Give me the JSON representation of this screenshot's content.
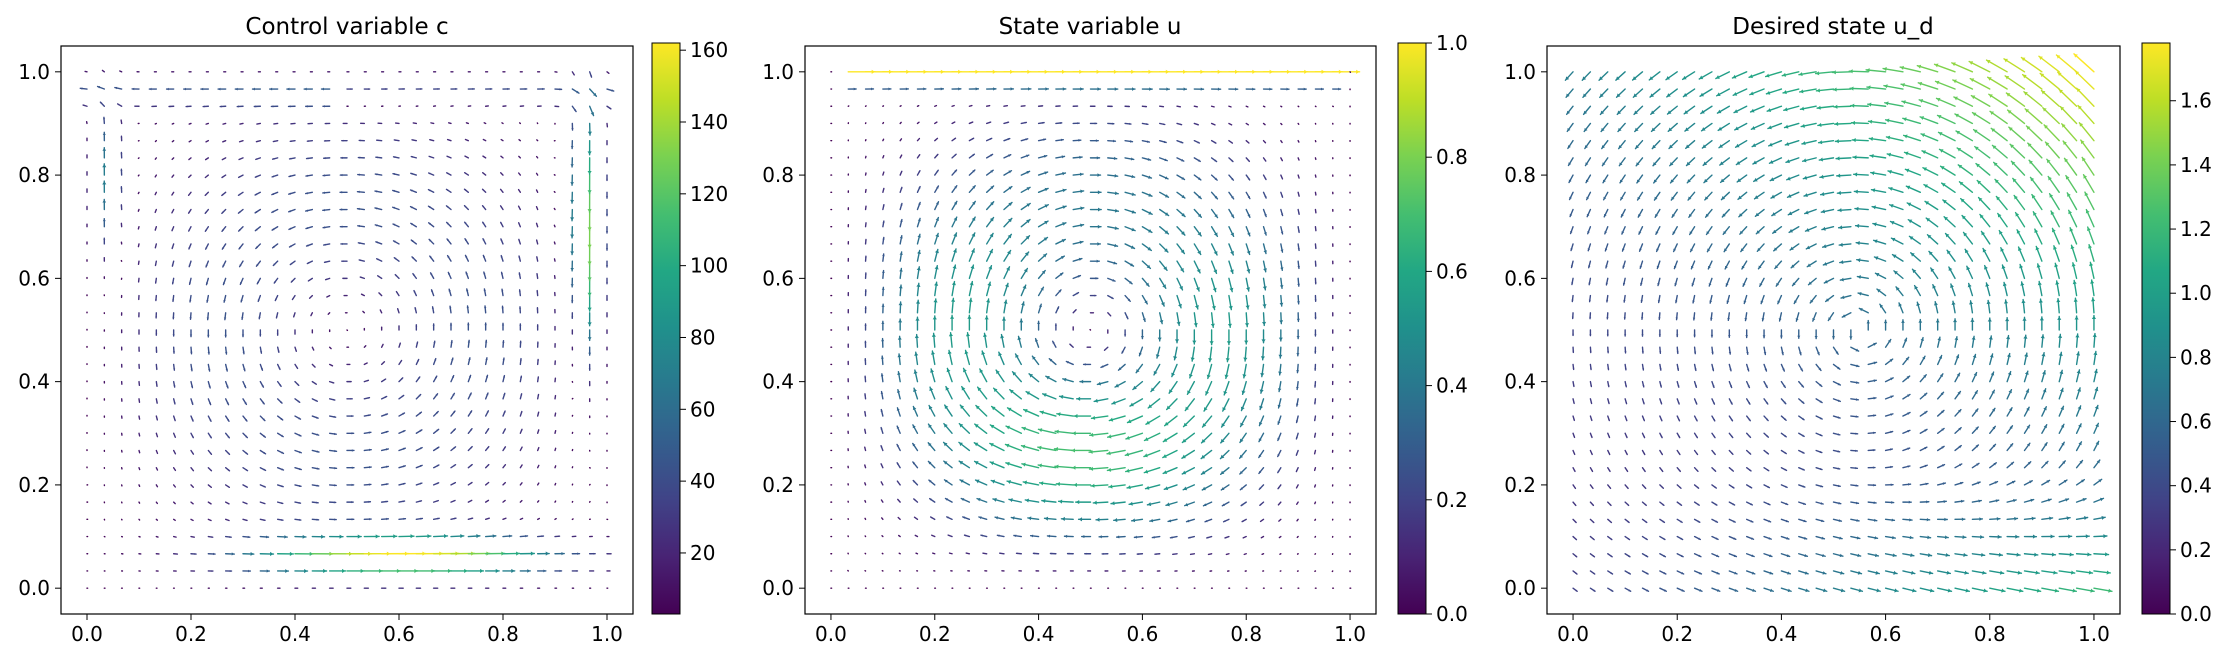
{
  "chart_data": [
    {
      "type": "quiver",
      "title": "Control variable c",
      "field": "control",
      "xlim": [
        -0.05,
        1.05
      ],
      "ylim": [
        -0.05,
        1.05
      ],
      "xticks": [
        "0.0",
        "0.2",
        "0.4",
        "0.6",
        "0.8",
        "1.0"
      ],
      "yticks": [
        "0.0",
        "0.2",
        "0.4",
        "0.6",
        "0.8",
        "1.0"
      ],
      "grid_points": 31,
      "colorbar": {
        "min": 3,
        "max": 162,
        "ticks": [
          "20",
          "40",
          "60",
          "80",
          "100",
          "120",
          "140",
          "160"
        ],
        "colormap": "viridis"
      },
      "description_of_flow": "Two counter-rotating boundary-concentrated vortices; strongest near bottom edge (x≈0.6, y≈0.05) and right edge (x≈0.97, y≈0.7)."
    },
    {
      "type": "quiver",
      "title": "State variable u",
      "field": "state",
      "xlim": [
        -0.05,
        1.05
      ],
      "ylim": [
        -0.05,
        1.05
      ],
      "xticks": [
        "0.0",
        "0.2",
        "0.4",
        "0.6",
        "0.8",
        "1.0"
      ],
      "yticks": [
        "0.0",
        "0.2",
        "0.4",
        "0.6",
        "0.8",
        "1.0"
      ],
      "grid_points": 31,
      "colorbar": {
        "min": 0.0,
        "max": 1.0,
        "ticks": [
          "0.0",
          "0.2",
          "0.4",
          "0.6",
          "0.8",
          "1.0"
        ],
        "colormap": "viridis"
      },
      "description_of_flow": "Lid-driven style circulation; max speed 1.0 at top lid (y=1.0), secondary vortex in lower half."
    },
    {
      "type": "quiver",
      "title": "Desired state u_d",
      "field": "desired",
      "xlim": [
        -0.05,
        1.05
      ],
      "ylim": [
        -0.05,
        1.05
      ],
      "xticks": [
        "0.0",
        "0.2",
        "0.4",
        "0.6",
        "0.8",
        "1.0"
      ],
      "yticks": [
        "0.0",
        "0.2",
        "0.4",
        "0.6",
        "0.8",
        "1.0"
      ],
      "grid_points": 31,
      "colorbar": {
        "min": 0.0,
        "max": 1.78,
        "ticks": [
          "0.0",
          "0.2",
          "0.4",
          "0.6",
          "0.8",
          "1.0",
          "1.2",
          "1.4",
          "1.6"
        ],
        "colormap": "viridis"
      },
      "description_of_flow": "Large rotating field, strongest near top-right (x≈0.8, y≈1.0) reaching ≈1.78, weak in bottom-left."
    }
  ]
}
